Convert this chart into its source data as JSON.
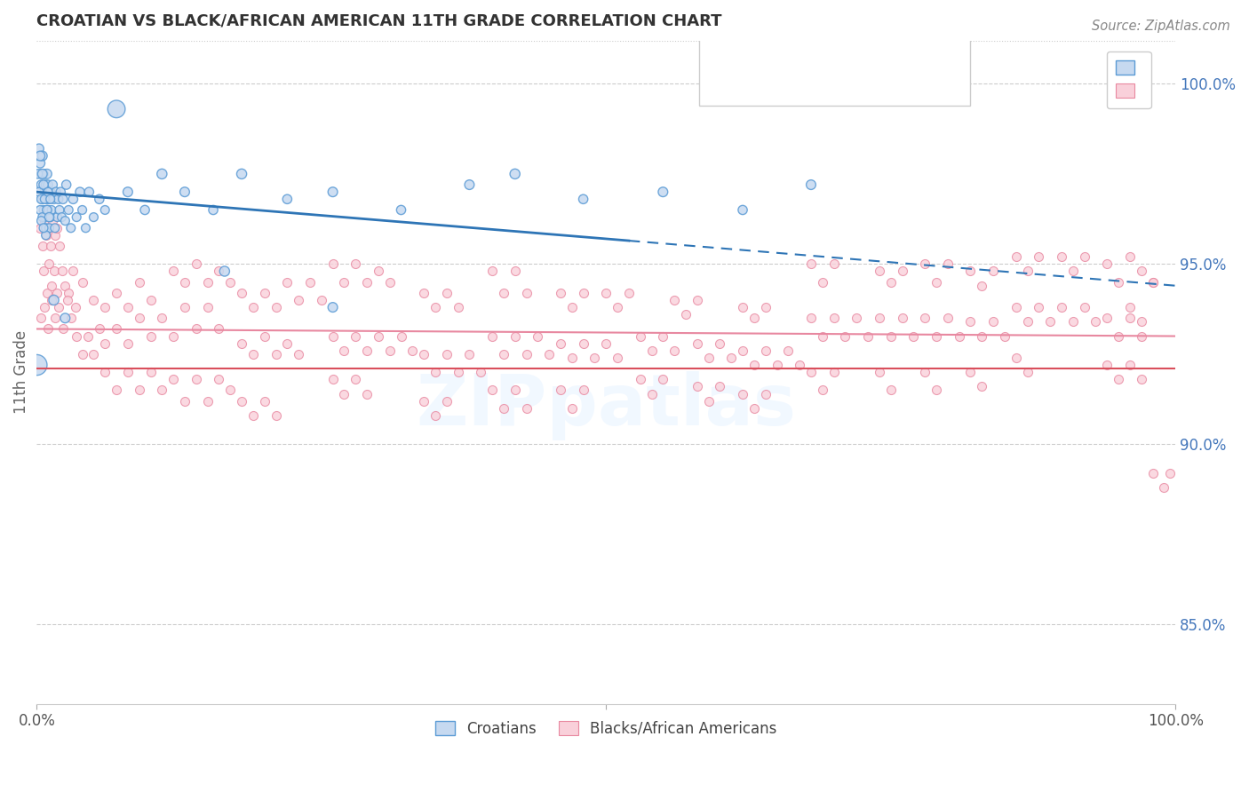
{
  "title": "CROATIAN VS BLACK/AFRICAN AMERICAN 11TH GRADE CORRELATION CHART",
  "source_text": "Source: ZipAtlas.com",
  "ylabel": "11th Grade",
  "right_yticks": [
    0.85,
    0.9,
    0.95,
    1.0
  ],
  "right_yticklabels": [
    "85.0%",
    "90.0%",
    "95.0%",
    "100.0%"
  ],
  "legend_label1": "Croatians",
  "legend_label2": "Blacks/African Americans",
  "blue_fill": "#c6d9f0",
  "blue_edge": "#5b9bd5",
  "pink_fill": "#f9d0da",
  "pink_edge": "#e888a0",
  "trend_blue_color": "#2e75b6",
  "trend_pink_color": "#e888a0",
  "red_line_y": 0.921,
  "red_line_color": "#d94f5c",
  "xmin": 0.0,
  "xmax": 1.0,
  "ymin": 0.828,
  "ymax": 1.012,
  "blue_trend_x0": 0.0,
  "blue_trend_y0": 0.97,
  "blue_trend_x1": 1.0,
  "blue_trend_y1": 0.944,
  "pink_trend_x0": 0.0,
  "pink_trend_y0": 0.932,
  "pink_trend_x1": 1.0,
  "pink_trend_y1": 0.93,
  "blue_points": [
    [
      0.002,
      0.982
    ],
    [
      0.003,
      0.978
    ],
    [
      0.004,
      0.975
    ],
    [
      0.004,
      0.972
    ],
    [
      0.005,
      0.98
    ],
    [
      0.005,
      0.968
    ],
    [
      0.006,
      0.975
    ],
    [
      0.006,
      0.965
    ],
    [
      0.007,
      0.97
    ],
    [
      0.007,
      0.963
    ],
    [
      0.008,
      0.972
    ],
    [
      0.008,
      0.96
    ],
    [
      0.009,
      0.968
    ],
    [
      0.009,
      0.975
    ],
    [
      0.01,
      0.965
    ],
    [
      0.01,
      0.972
    ],
    [
      0.011,
      0.968
    ],
    [
      0.011,
      0.96
    ],
    [
      0.012,
      0.97
    ],
    [
      0.012,
      0.963
    ],
    [
      0.013,
      0.965
    ],
    [
      0.014,
      0.972
    ],
    [
      0.015,
      0.968
    ],
    [
      0.016,
      0.96
    ],
    [
      0.017,
      0.97
    ],
    [
      0.018,
      0.963
    ],
    [
      0.019,
      0.968
    ],
    [
      0.02,
      0.965
    ],
    [
      0.021,
      0.97
    ],
    [
      0.022,
      0.963
    ],
    [
      0.023,
      0.968
    ],
    [
      0.025,
      0.962
    ],
    [
      0.026,
      0.972
    ],
    [
      0.028,
      0.965
    ],
    [
      0.03,
      0.96
    ],
    [
      0.032,
      0.968
    ],
    [
      0.035,
      0.963
    ],
    [
      0.038,
      0.97
    ],
    [
      0.04,
      0.965
    ],
    [
      0.043,
      0.96
    ],
    [
      0.046,
      0.97
    ],
    [
      0.05,
      0.963
    ],
    [
      0.055,
      0.968
    ],
    [
      0.06,
      0.965
    ],
    [
      0.001,
      0.975
    ],
    [
      0.002,
      0.97
    ],
    [
      0.003,
      0.965
    ],
    [
      0.004,
      0.968
    ],
    [
      0.005,
      0.963
    ],
    [
      0.006,
      0.972
    ],
    [
      0.007,
      0.968
    ],
    [
      0.008,
      0.958
    ],
    [
      0.009,
      0.965
    ],
    [
      0.01,
      0.97
    ],
    [
      0.011,
      0.963
    ],
    [
      0.012,
      0.968
    ],
    [
      0.003,
      0.98
    ],
    [
      0.004,
      0.962
    ],
    [
      0.005,
      0.975
    ],
    [
      0.006,
      0.96
    ],
    [
      0.07,
      0.993
    ],
    [
      0.08,
      0.97
    ],
    [
      0.095,
      0.965
    ],
    [
      0.11,
      0.975
    ],
    [
      0.13,
      0.97
    ],
    [
      0.155,
      0.965
    ],
    [
      0.18,
      0.975
    ],
    [
      0.22,
      0.968
    ],
    [
      0.26,
      0.97
    ],
    [
      0.32,
      0.965
    ],
    [
      0.38,
      0.972
    ],
    [
      0.42,
      0.975
    ],
    [
      0.48,
      0.968
    ],
    [
      0.55,
      0.97
    ],
    [
      0.62,
      0.965
    ],
    [
      0.68,
      0.972
    ],
    [
      0.0,
      0.922
    ],
    [
      0.015,
      0.94
    ],
    [
      0.025,
      0.935
    ],
    [
      0.165,
      0.948
    ],
    [
      0.26,
      0.938
    ]
  ],
  "blue_sizes": [
    60,
    60,
    55,
    55,
    60,
    55,
    55,
    50,
    55,
    50,
    55,
    50,
    55,
    60,
    50,
    55,
    55,
    50,
    55,
    50,
    50,
    55,
    55,
    50,
    55,
    50,
    55,
    50,
    55,
    50,
    55,
    50,
    55,
    50,
    50,
    55,
    50,
    55,
    50,
    50,
    55,
    50,
    55,
    50,
    55,
    50,
    50,
    55,
    50,
    55,
    50,
    50,
    55,
    50,
    55,
    50,
    60,
    50,
    60,
    50,
    200,
    60,
    55,
    65,
    60,
    55,
    65,
    55,
    60,
    55,
    60,
    65,
    55,
    60,
    55,
    60,
    280,
    65,
    60,
    65,
    60
  ],
  "pink_points": [
    [
      0.003,
      0.96
    ],
    [
      0.005,
      0.955
    ],
    [
      0.007,
      0.962
    ],
    [
      0.008,
      0.958
    ],
    [
      0.01,
      0.96
    ],
    [
      0.012,
      0.955
    ],
    [
      0.014,
      0.962
    ],
    [
      0.016,
      0.958
    ],
    [
      0.018,
      0.96
    ],
    [
      0.02,
      0.955
    ],
    [
      0.006,
      0.948
    ],
    [
      0.009,
      0.942
    ],
    [
      0.011,
      0.95
    ],
    [
      0.013,
      0.944
    ],
    [
      0.015,
      0.948
    ],
    [
      0.018,
      0.942
    ],
    [
      0.022,
      0.948
    ],
    [
      0.025,
      0.944
    ],
    [
      0.028,
      0.942
    ],
    [
      0.032,
      0.948
    ],
    [
      0.004,
      0.935
    ],
    [
      0.007,
      0.938
    ],
    [
      0.01,
      0.932
    ],
    [
      0.013,
      0.94
    ],
    [
      0.016,
      0.935
    ],
    [
      0.019,
      0.938
    ],
    [
      0.023,
      0.932
    ],
    [
      0.027,
      0.94
    ],
    [
      0.03,
      0.935
    ],
    [
      0.034,
      0.938
    ],
    [
      0.035,
      0.93
    ],
    [
      0.04,
      0.925
    ],
    [
      0.045,
      0.93
    ],
    [
      0.05,
      0.925
    ],
    [
      0.055,
      0.932
    ],
    [
      0.06,
      0.928
    ],
    [
      0.07,
      0.932
    ],
    [
      0.08,
      0.928
    ],
    [
      0.04,
      0.945
    ],
    [
      0.05,
      0.94
    ],
    [
      0.06,
      0.938
    ],
    [
      0.07,
      0.942
    ],
    [
      0.08,
      0.938
    ],
    [
      0.09,
      0.945
    ],
    [
      0.1,
      0.94
    ],
    [
      0.06,
      0.92
    ],
    [
      0.07,
      0.915
    ],
    [
      0.08,
      0.92
    ],
    [
      0.09,
      0.915
    ],
    [
      0.1,
      0.92
    ],
    [
      0.11,
      0.915
    ],
    [
      0.09,
      0.935
    ],
    [
      0.1,
      0.93
    ],
    [
      0.11,
      0.935
    ],
    [
      0.12,
      0.93
    ],
    [
      0.13,
      0.938
    ],
    [
      0.14,
      0.932
    ],
    [
      0.15,
      0.938
    ],
    [
      0.16,
      0.932
    ],
    [
      0.12,
      0.948
    ],
    [
      0.13,
      0.945
    ],
    [
      0.14,
      0.95
    ],
    [
      0.15,
      0.945
    ],
    [
      0.16,
      0.948
    ],
    [
      0.17,
      0.945
    ],
    [
      0.12,
      0.918
    ],
    [
      0.13,
      0.912
    ],
    [
      0.14,
      0.918
    ],
    [
      0.15,
      0.912
    ],
    [
      0.16,
      0.918
    ],
    [
      0.17,
      0.915
    ],
    [
      0.18,
      0.942
    ],
    [
      0.19,
      0.938
    ],
    [
      0.2,
      0.942
    ],
    [
      0.21,
      0.938
    ],
    [
      0.22,
      0.945
    ],
    [
      0.23,
      0.94
    ],
    [
      0.24,
      0.945
    ],
    [
      0.25,
      0.94
    ],
    [
      0.18,
      0.928
    ],
    [
      0.19,
      0.925
    ],
    [
      0.2,
      0.93
    ],
    [
      0.21,
      0.925
    ],
    [
      0.22,
      0.928
    ],
    [
      0.23,
      0.925
    ],
    [
      0.18,
      0.912
    ],
    [
      0.19,
      0.908
    ],
    [
      0.2,
      0.912
    ],
    [
      0.21,
      0.908
    ],
    [
      0.26,
      0.95
    ],
    [
      0.27,
      0.945
    ],
    [
      0.28,
      0.95
    ],
    [
      0.29,
      0.945
    ],
    [
      0.3,
      0.948
    ],
    [
      0.31,
      0.945
    ],
    [
      0.26,
      0.93
    ],
    [
      0.27,
      0.926
    ],
    [
      0.28,
      0.93
    ],
    [
      0.29,
      0.926
    ],
    [
      0.3,
      0.93
    ],
    [
      0.31,
      0.926
    ],
    [
      0.32,
      0.93
    ],
    [
      0.33,
      0.926
    ],
    [
      0.26,
      0.918
    ],
    [
      0.27,
      0.914
    ],
    [
      0.28,
      0.918
    ],
    [
      0.29,
      0.914
    ],
    [
      0.34,
      0.942
    ],
    [
      0.35,
      0.938
    ],
    [
      0.36,
      0.942
    ],
    [
      0.37,
      0.938
    ],
    [
      0.34,
      0.925
    ],
    [
      0.35,
      0.92
    ],
    [
      0.36,
      0.925
    ],
    [
      0.37,
      0.92
    ],
    [
      0.38,
      0.925
    ],
    [
      0.39,
      0.92
    ],
    [
      0.34,
      0.912
    ],
    [
      0.35,
      0.908
    ],
    [
      0.36,
      0.912
    ],
    [
      0.4,
      0.948
    ],
    [
      0.41,
      0.942
    ],
    [
      0.42,
      0.948
    ],
    [
      0.43,
      0.942
    ],
    [
      0.4,
      0.93
    ],
    [
      0.41,
      0.925
    ],
    [
      0.42,
      0.93
    ],
    [
      0.43,
      0.925
    ],
    [
      0.44,
      0.93
    ],
    [
      0.45,
      0.925
    ],
    [
      0.4,
      0.915
    ],
    [
      0.41,
      0.91
    ],
    [
      0.42,
      0.915
    ],
    [
      0.43,
      0.91
    ],
    [
      0.46,
      0.942
    ],
    [
      0.47,
      0.938
    ],
    [
      0.48,
      0.942
    ],
    [
      0.46,
      0.928
    ],
    [
      0.47,
      0.924
    ],
    [
      0.48,
      0.928
    ],
    [
      0.49,
      0.924
    ],
    [
      0.5,
      0.928
    ],
    [
      0.51,
      0.924
    ],
    [
      0.46,
      0.915
    ],
    [
      0.47,
      0.91
    ],
    [
      0.48,
      0.915
    ],
    [
      0.5,
      0.942
    ],
    [
      0.51,
      0.938
    ],
    [
      0.52,
      0.942
    ],
    [
      0.53,
      0.93
    ],
    [
      0.54,
      0.926
    ],
    [
      0.55,
      0.93
    ],
    [
      0.56,
      0.926
    ],
    [
      0.53,
      0.918
    ],
    [
      0.54,
      0.914
    ],
    [
      0.55,
      0.918
    ],
    [
      0.56,
      0.94
    ],
    [
      0.57,
      0.936
    ],
    [
      0.58,
      0.94
    ],
    [
      0.58,
      0.928
    ],
    [
      0.59,
      0.924
    ],
    [
      0.6,
      0.928
    ],
    [
      0.61,
      0.924
    ],
    [
      0.58,
      0.916
    ],
    [
      0.59,
      0.912
    ],
    [
      0.6,
      0.916
    ],
    [
      0.62,
      0.938
    ],
    [
      0.63,
      0.935
    ],
    [
      0.64,
      0.938
    ],
    [
      0.62,
      0.926
    ],
    [
      0.63,
      0.922
    ],
    [
      0.64,
      0.926
    ],
    [
      0.65,
      0.922
    ],
    [
      0.66,
      0.926
    ],
    [
      0.67,
      0.922
    ],
    [
      0.62,
      0.914
    ],
    [
      0.63,
      0.91
    ],
    [
      0.64,
      0.914
    ],
    [
      0.68,
      0.95
    ],
    [
      0.69,
      0.945
    ],
    [
      0.7,
      0.95
    ],
    [
      0.68,
      0.935
    ],
    [
      0.69,
      0.93
    ],
    [
      0.7,
      0.935
    ],
    [
      0.71,
      0.93
    ],
    [
      0.72,
      0.935
    ],
    [
      0.73,
      0.93
    ],
    [
      0.68,
      0.92
    ],
    [
      0.69,
      0.915
    ],
    [
      0.7,
      0.92
    ],
    [
      0.74,
      0.948
    ],
    [
      0.75,
      0.945
    ],
    [
      0.76,
      0.948
    ],
    [
      0.74,
      0.935
    ],
    [
      0.75,
      0.93
    ],
    [
      0.76,
      0.935
    ],
    [
      0.77,
      0.93
    ],
    [
      0.74,
      0.92
    ],
    [
      0.75,
      0.915
    ],
    [
      0.78,
      0.95
    ],
    [
      0.79,
      0.945
    ],
    [
      0.8,
      0.95
    ],
    [
      0.78,
      0.935
    ],
    [
      0.79,
      0.93
    ],
    [
      0.8,
      0.935
    ],
    [
      0.81,
      0.93
    ],
    [
      0.78,
      0.92
    ],
    [
      0.79,
      0.915
    ],
    [
      0.82,
      0.948
    ],
    [
      0.83,
      0.944
    ],
    [
      0.84,
      0.948
    ],
    [
      0.82,
      0.934
    ],
    [
      0.83,
      0.93
    ],
    [
      0.84,
      0.934
    ],
    [
      0.85,
      0.93
    ],
    [
      0.82,
      0.92
    ],
    [
      0.83,
      0.916
    ],
    [
      0.86,
      0.952
    ],
    [
      0.87,
      0.948
    ],
    [
      0.88,
      0.952
    ],
    [
      0.86,
      0.938
    ],
    [
      0.87,
      0.934
    ],
    [
      0.88,
      0.938
    ],
    [
      0.89,
      0.934
    ],
    [
      0.86,
      0.924
    ],
    [
      0.87,
      0.92
    ],
    [
      0.9,
      0.952
    ],
    [
      0.91,
      0.948
    ],
    [
      0.92,
      0.952
    ],
    [
      0.9,
      0.938
    ],
    [
      0.91,
      0.934
    ],
    [
      0.92,
      0.938
    ],
    [
      0.93,
      0.934
    ],
    [
      0.94,
      0.95
    ],
    [
      0.95,
      0.945
    ],
    [
      0.94,
      0.935
    ],
    [
      0.95,
      0.93
    ],
    [
      0.96,
      0.935
    ],
    [
      0.97,
      0.93
    ],
    [
      0.94,
      0.922
    ],
    [
      0.95,
      0.918
    ],
    [
      0.96,
      0.952
    ],
    [
      0.97,
      0.948
    ],
    [
      0.98,
      0.945
    ],
    [
      0.96,
      0.938
    ],
    [
      0.97,
      0.934
    ],
    [
      0.98,
      0.945
    ],
    [
      0.96,
      0.922
    ],
    [
      0.97,
      0.918
    ],
    [
      0.98,
      0.892
    ],
    [
      0.99,
      0.888
    ],
    [
      0.995,
      0.892
    ]
  ]
}
